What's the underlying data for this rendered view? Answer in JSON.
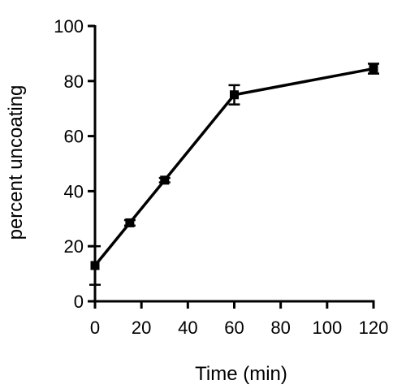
{
  "chart_data": {
    "type": "line",
    "title": "",
    "xlabel": "Time (min)",
    "ylabel": "percent uncoating",
    "xlim": [
      0,
      120
    ],
    "ylim": [
      0,
      100
    ],
    "xticks": [
      0,
      20,
      40,
      60,
      80,
      100,
      120
    ],
    "yticks": [
      0,
      20,
      40,
      60,
      80,
      100
    ],
    "xtick_labels": [
      "0",
      "20",
      "40",
      "60",
      "80",
      "100",
      "120"
    ],
    "ytick_labels": [
      "0",
      "20",
      "40",
      "60",
      "80",
      "100"
    ],
    "grid": false,
    "legend": "none",
    "series": [
      {
        "x": [
          0,
          15,
          30,
          60,
          120
        ],
        "y": [
          13,
          28.5,
          44,
          75,
          84.5
        ],
        "error": [
          7,
          1,
          0.8,
          3.5,
          1.8
        ],
        "color": "#000000",
        "marker": "square"
      }
    ]
  }
}
